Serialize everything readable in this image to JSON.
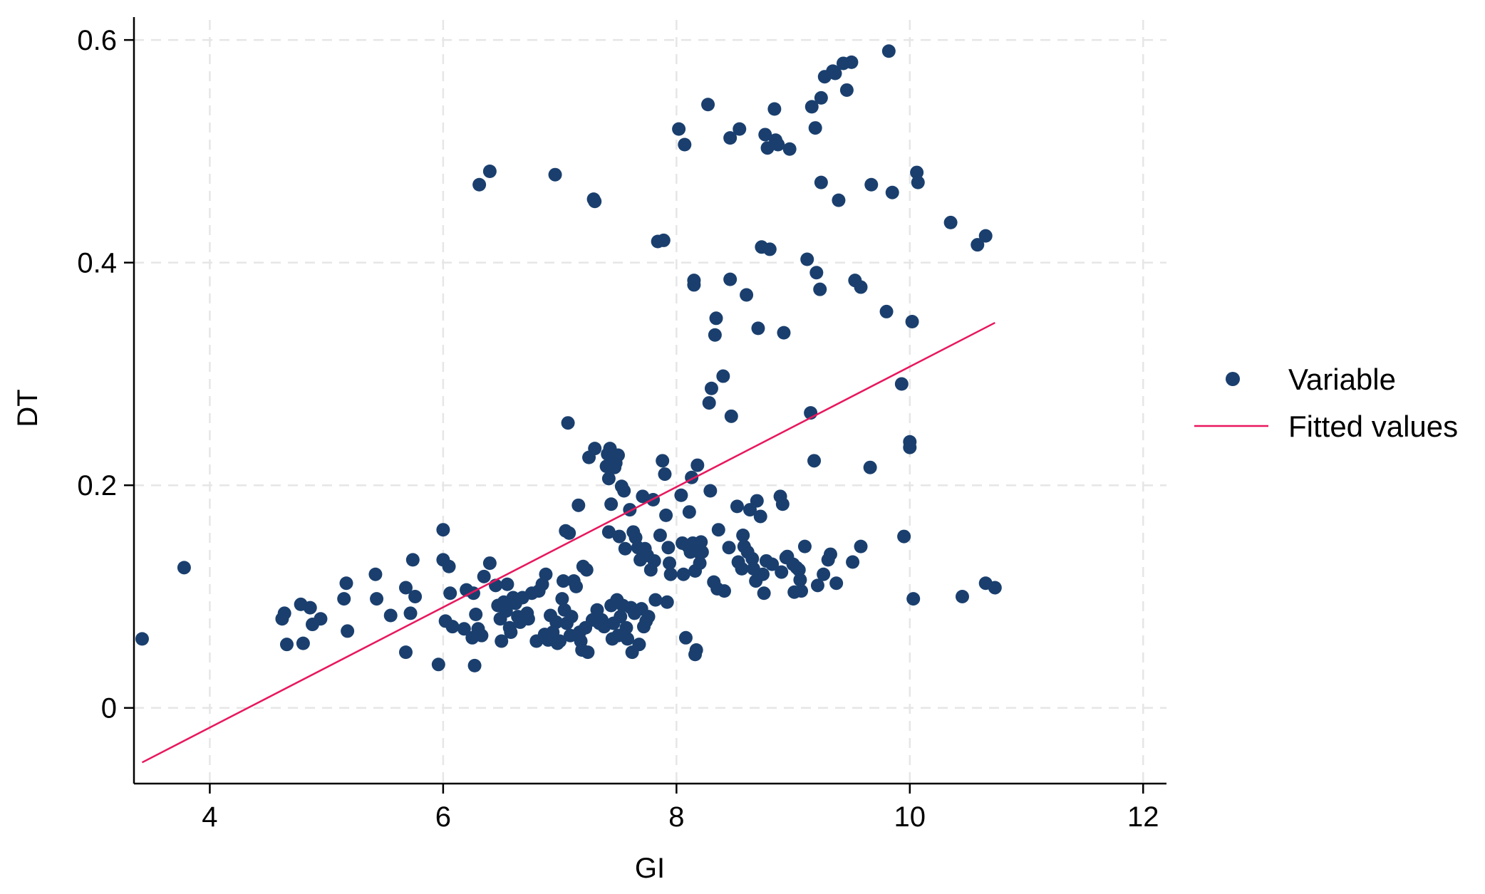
{
  "chart_data": {
    "type": "scatter",
    "xlabel": "GI",
    "ylabel": "DT",
    "xlim": [
      3.35,
      12.2
    ],
    "ylim": [
      -0.068,
      0.618
    ],
    "xticks": [
      4,
      6,
      8,
      10,
      12
    ],
    "xtick_labels": [
      "4",
      "6",
      "8",
      "10",
      "12"
    ],
    "yticks": [
      0,
      0.2,
      0.4,
      0.6
    ],
    "ytick_labels": [
      "0",
      "0.2",
      "0.4",
      "0.6"
    ],
    "grid": true,
    "legend_position": "right",
    "colors": {
      "points": "#1a3f6e",
      "fit": "#e8175d"
    },
    "series": [
      {
        "name": "Variable",
        "kind": "points",
        "points": [
          [
            3.42,
            0.062
          ],
          [
            3.78,
            0.126
          ],
          [
            4.62,
            0.08
          ],
          [
            4.64,
            0.085
          ],
          [
            4.66,
            0.057
          ],
          [
            4.78,
            0.093
          ],
          [
            4.8,
            0.058
          ],
          [
            4.86,
            0.09
          ],
          [
            4.88,
            0.075
          ],
          [
            4.95,
            0.08
          ],
          [
            5.15,
            0.098
          ],
          [
            5.17,
            0.112
          ],
          [
            5.18,
            0.069
          ],
          [
            5.42,
            0.12
          ],
          [
            5.43,
            0.098
          ],
          [
            5.55,
            0.083
          ],
          [
            5.68,
            0.108
          ],
          [
            5.68,
            0.05
          ],
          [
            5.72,
            0.085
          ],
          [
            5.74,
            0.133
          ],
          [
            5.76,
            0.1
          ],
          [
            5.96,
            0.039
          ],
          [
            6.0,
            0.16
          ],
          [
            6.0,
            0.133
          ],
          [
            6.02,
            0.078
          ],
          [
            6.05,
            0.127
          ],
          [
            6.06,
            0.103
          ],
          [
            6.08,
            0.073
          ],
          [
            6.18,
            0.071
          ],
          [
            6.2,
            0.106
          ],
          [
            6.25,
            0.063
          ],
          [
            6.26,
            0.103
          ],
          [
            6.27,
            0.038
          ],
          [
            6.28,
            0.084
          ],
          [
            6.3,
            0.071
          ],
          [
            6.31,
            0.47
          ],
          [
            6.33,
            0.065
          ],
          [
            6.35,
            0.118
          ],
          [
            6.4,
            0.482
          ],
          [
            6.4,
            0.13
          ],
          [
            6.45,
            0.11
          ],
          [
            6.47,
            0.092
          ],
          [
            6.49,
            0.08
          ],
          [
            6.5,
            0.06
          ],
          [
            6.52,
            0.095
          ],
          [
            6.54,
            0.087
          ],
          [
            6.55,
            0.111
          ],
          [
            6.57,
            0.072
          ],
          [
            6.58,
            0.068
          ],
          [
            6.6,
            0.099
          ],
          [
            6.62,
            0.094
          ],
          [
            6.64,
            0.082
          ],
          [
            6.66,
            0.077
          ],
          [
            6.68,
            0.099
          ],
          [
            6.72,
            0.085
          ],
          [
            6.73,
            0.08
          ],
          [
            6.76,
            0.103
          ],
          [
            6.8,
            0.06
          ],
          [
            6.82,
            0.105
          ],
          [
            6.85,
            0.111
          ],
          [
            6.87,
            0.066
          ],
          [
            6.88,
            0.12
          ],
          [
            6.9,
            0.061
          ],
          [
            6.92,
            0.083
          ],
          [
            6.94,
            0.068
          ],
          [
            6.96,
            0.479
          ],
          [
            6.97,
            0.077
          ],
          [
            6.98,
            0.058
          ],
          [
            7.0,
            0.06
          ],
          [
            7.02,
            0.098
          ],
          [
            7.03,
            0.114
          ],
          [
            7.04,
            0.088
          ],
          [
            7.05,
            0.159
          ],
          [
            7.06,
            0.076
          ],
          [
            7.07,
            0.256
          ],
          [
            7.08,
            0.157
          ],
          [
            7.09,
            0.065
          ],
          [
            7.1,
            0.082
          ],
          [
            7.12,
            0.114
          ],
          [
            7.14,
            0.109
          ],
          [
            7.16,
            0.182
          ],
          [
            7.17,
            0.068
          ],
          [
            7.18,
            0.06
          ],
          [
            7.19,
            0.052
          ],
          [
            7.2,
            0.127
          ],
          [
            7.22,
            0.072
          ],
          [
            7.23,
            0.124
          ],
          [
            7.24,
            0.05
          ],
          [
            7.25,
            0.225
          ],
          [
            7.28,
            0.079
          ],
          [
            7.29,
            0.457
          ],
          [
            7.3,
            0.233
          ],
          [
            7.3,
            0.455
          ],
          [
            7.32,
            0.088
          ],
          [
            7.34,
            0.076
          ],
          [
            7.36,
            0.079
          ],
          [
            7.38,
            0.073
          ],
          [
            7.4,
            0.217
          ],
          [
            7.41,
            0.228
          ],
          [
            7.42,
            0.206
          ],
          [
            7.42,
            0.158
          ],
          [
            7.43,
            0.233
          ],
          [
            7.44,
            0.183
          ],
          [
            7.44,
            0.092
          ],
          [
            7.45,
            0.062
          ],
          [
            7.46,
            0.076
          ],
          [
            7.47,
            0.216
          ],
          [
            7.48,
            0.22
          ],
          [
            7.49,
            0.097
          ],
          [
            7.5,
            0.227
          ],
          [
            7.5,
            0.065
          ],
          [
            7.51,
            0.154
          ],
          [
            7.52,
            0.082
          ],
          [
            7.53,
            0.199
          ],
          [
            7.54,
            0.092
          ],
          [
            7.55,
            0.195
          ],
          [
            7.56,
            0.143
          ],
          [
            7.57,
            0.072
          ],
          [
            7.58,
            0.062
          ],
          [
            7.6,
            0.178
          ],
          [
            7.61,
            0.09
          ],
          [
            7.62,
            0.05
          ],
          [
            7.63,
            0.158
          ],
          [
            7.64,
            0.085
          ],
          [
            7.65,
            0.153
          ],
          [
            7.67,
            0.144
          ],
          [
            7.68,
            0.057
          ],
          [
            7.69,
            0.133
          ],
          [
            7.7,
            0.089
          ],
          [
            7.71,
            0.19
          ],
          [
            7.72,
            0.073
          ],
          [
            7.73,
            0.143
          ],
          [
            7.74,
            0.078
          ],
          [
            7.75,
            0.137
          ],
          [
            7.76,
            0.082
          ],
          [
            7.78,
            0.124
          ],
          [
            7.8,
            0.187
          ],
          [
            7.81,
            0.132
          ],
          [
            7.82,
            0.097
          ],
          [
            7.84,
            0.419
          ],
          [
            7.86,
            0.155
          ],
          [
            7.88,
            0.222
          ],
          [
            7.89,
            0.42
          ],
          [
            7.9,
            0.21
          ],
          [
            7.91,
            0.173
          ],
          [
            7.92,
            0.095
          ],
          [
            7.93,
            0.144
          ],
          [
            7.94,
            0.13
          ],
          [
            7.95,
            0.12
          ],
          [
            8.02,
            0.52
          ],
          [
            8.04,
            0.191
          ],
          [
            8.05,
            0.148
          ],
          [
            8.06,
            0.12
          ],
          [
            8.07,
            0.506
          ],
          [
            8.08,
            0.063
          ],
          [
            8.1,
            0.145
          ],
          [
            8.11,
            0.176
          ],
          [
            8.12,
            0.14
          ],
          [
            8.13,
            0.207
          ],
          [
            8.14,
            0.148
          ],
          [
            8.15,
            0.384
          ],
          [
            8.15,
            0.38
          ],
          [
            8.16,
            0.048
          ],
          [
            8.16,
            0.123
          ],
          [
            8.17,
            0.052
          ],
          [
            8.18,
            0.218
          ],
          [
            8.19,
            0.14
          ],
          [
            8.2,
            0.13
          ],
          [
            8.21,
            0.149
          ],
          [
            8.22,
            0.14
          ],
          [
            8.27,
            0.542
          ],
          [
            8.28,
            0.274
          ],
          [
            8.29,
            0.195
          ],
          [
            8.3,
            0.287
          ],
          [
            8.32,
            0.113
          ],
          [
            8.33,
            0.335
          ],
          [
            8.34,
            0.35
          ],
          [
            8.35,
            0.107
          ],
          [
            8.36,
            0.16
          ],
          [
            8.4,
            0.298
          ],
          [
            8.41,
            0.105
          ],
          [
            8.45,
            0.144
          ],
          [
            8.46,
            0.385
          ],
          [
            8.46,
            0.512
          ],
          [
            8.47,
            0.262
          ],
          [
            8.52,
            0.181
          ],
          [
            8.53,
            0.131
          ],
          [
            8.54,
            0.52
          ],
          [
            8.56,
            0.125
          ],
          [
            8.57,
            0.155
          ],
          [
            8.58,
            0.145
          ],
          [
            8.6,
            0.371
          ],
          [
            8.61,
            0.14
          ],
          [
            8.63,
            0.178
          ],
          [
            8.65,
            0.134
          ],
          [
            8.66,
            0.125
          ],
          [
            8.68,
            0.114
          ],
          [
            8.69,
            0.186
          ],
          [
            8.7,
            0.341
          ],
          [
            8.72,
            0.172
          ],
          [
            8.73,
            0.414
          ],
          [
            8.74,
            0.12
          ],
          [
            8.75,
            0.103
          ],
          [
            8.76,
            0.515
          ],
          [
            8.77,
            0.132
          ],
          [
            8.78,
            0.503
          ],
          [
            8.8,
            0.412
          ],
          [
            8.82,
            0.129
          ],
          [
            8.84,
            0.538
          ],
          [
            8.85,
            0.51
          ],
          [
            8.87,
            0.506
          ],
          [
            8.89,
            0.19
          ],
          [
            8.9,
            0.122
          ],
          [
            8.91,
            0.183
          ],
          [
            8.92,
            0.337
          ],
          [
            8.94,
            0.135
          ],
          [
            8.95,
            0.136
          ],
          [
            8.97,
            0.502
          ],
          [
            9.0,
            0.129
          ],
          [
            9.01,
            0.104
          ],
          [
            9.03,
            0.126
          ],
          [
            9.05,
            0.124
          ],
          [
            9.06,
            0.115
          ],
          [
            9.07,
            0.105
          ],
          [
            9.1,
            0.145
          ],
          [
            9.12,
            0.403
          ],
          [
            9.15,
            0.265
          ],
          [
            9.16,
            0.54
          ],
          [
            9.18,
            0.222
          ],
          [
            9.19,
            0.521
          ],
          [
            9.2,
            0.391
          ],
          [
            9.21,
            0.11
          ],
          [
            9.23,
            0.376
          ],
          [
            9.24,
            0.548
          ],
          [
            9.24,
            0.472
          ],
          [
            9.26,
            0.12
          ],
          [
            9.27,
            0.567
          ],
          [
            9.3,
            0.133
          ],
          [
            9.32,
            0.138
          ],
          [
            9.34,
            0.572
          ],
          [
            9.36,
            0.57
          ],
          [
            9.37,
            0.112
          ],
          [
            9.39,
            0.456
          ],
          [
            9.43,
            0.579
          ],
          [
            9.46,
            0.555
          ],
          [
            9.5,
            0.58
          ],
          [
            9.51,
            0.131
          ],
          [
            9.53,
            0.384
          ],
          [
            9.58,
            0.378
          ],
          [
            9.58,
            0.145
          ],
          [
            9.66,
            0.216
          ],
          [
            9.67,
            0.47
          ],
          [
            9.8,
            0.356
          ],
          [
            9.82,
            0.59
          ],
          [
            9.85,
            0.463
          ],
          [
            9.93,
            0.291
          ],
          [
            9.95,
            0.154
          ],
          [
            10.0,
            0.239
          ],
          [
            10.0,
            0.234
          ],
          [
            10.02,
            0.347
          ],
          [
            10.03,
            0.098
          ],
          [
            10.06,
            0.481
          ],
          [
            10.07,
            0.472
          ],
          [
            10.35,
            0.436
          ],
          [
            10.45,
            0.1
          ],
          [
            10.58,
            0.416
          ],
          [
            10.65,
            0.424
          ],
          [
            10.65,
            0.112
          ],
          [
            10.73,
            0.108
          ]
        ]
      },
      {
        "name": "Fitted values",
        "kind": "line",
        "points": [
          [
            3.42,
            -0.049
          ],
          [
            10.73,
            0.346
          ]
        ]
      }
    ]
  }
}
